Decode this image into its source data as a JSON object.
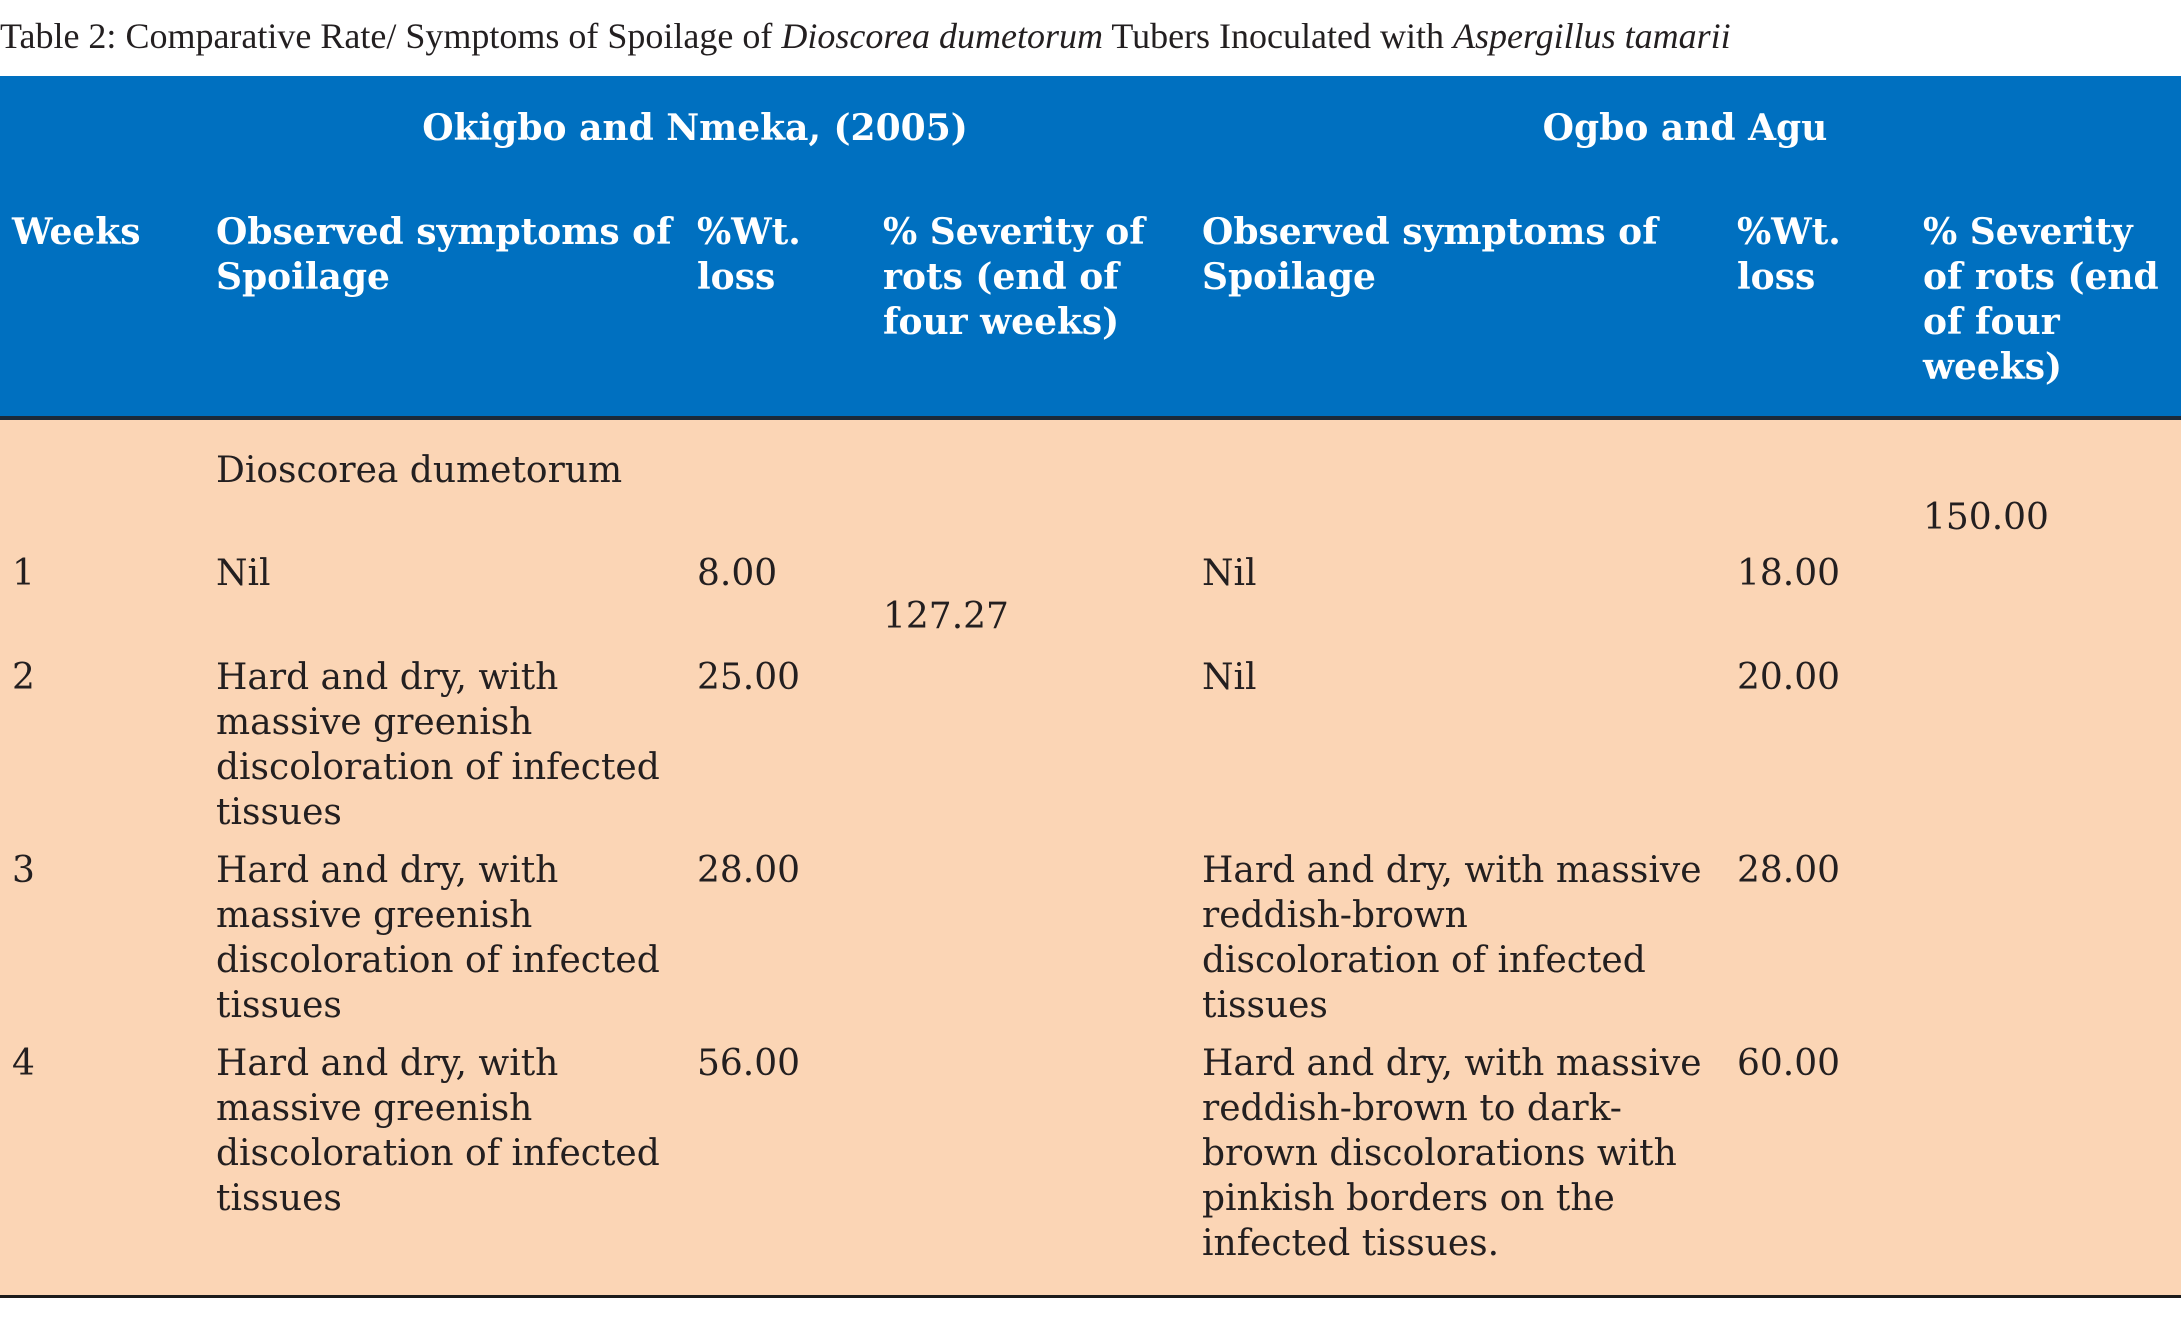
{
  "caption": {
    "prefix": "Table 2: Comparative Rate/ Symptoms of Spoilage of ",
    "italic1": "Dioscorea dumetorum",
    "middle": " Tubers Inoculated with ",
    "italic2": "Aspergillus tamarii"
  },
  "header": {
    "group_left": "Okigbo and Nmeka, (2005)",
    "group_right": "Ogbo and Agu",
    "columns": [
      "Weeks",
      "Observed symptoms of Spoilage",
      "%Wt. loss",
      "% Severity of rots (end of four weeks)",
      "Observed symptoms of Spoilage",
      "%Wt. loss",
      "% Severity of rots (end of four weeks)"
    ]
  },
  "body": {
    "subheading": "Dioscorea dumetorum",
    "severity_left": "127.27",
    "severity_right": "150.00",
    "rows": [
      {
        "week": "1",
        "symptoms_left": "Nil",
        "wt_left": "8.00",
        "symptoms_right": "Nil",
        "wt_right": "18.00"
      },
      {
        "week": "2",
        "symptoms_left": "Hard and dry, with massive greenish discoloration of infected tissues",
        "wt_left": "25.00",
        "symptoms_right": "Nil",
        "wt_right": "20.00"
      },
      {
        "week": "3",
        "symptoms_left": "Hard and dry, with massive greenish discoloration of infected tissues",
        "wt_left": "28.00",
        "symptoms_right": "Hard and dry, with massive reddish-brown discoloration of infected tissues",
        "wt_right": "28.00"
      },
      {
        "week": "4",
        "symptoms_left": "Hard and dry, with massive greenish discoloration of infected tissues",
        "wt_left": "56.00",
        "symptoms_right": "Hard and dry, with massive reddish-brown to dark-brown discolorations with pinkish borders on the infected tissues.",
        "wt_right": "60.00"
      }
    ]
  }
}
